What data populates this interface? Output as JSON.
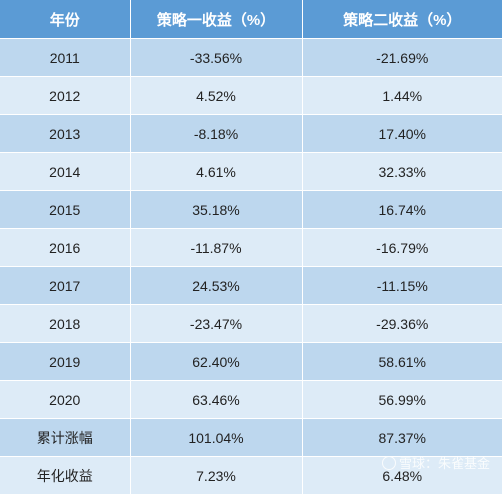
{
  "table": {
    "headers": [
      "年份",
      "策略一收益（%）",
      "策略二收益（%）"
    ],
    "rows": [
      [
        "2011",
        "-33.56%",
        "-21.69%"
      ],
      [
        "2012",
        "4.52%",
        "1.44%"
      ],
      [
        "2013",
        "-8.18%",
        "17.40%"
      ],
      [
        "2014",
        "4.61%",
        "32.33%"
      ],
      [
        "2015",
        "35.18%",
        "16.74%"
      ],
      [
        "2016",
        "-11.87%",
        "-16.79%"
      ],
      [
        "2017",
        "24.53%",
        "-11.15%"
      ],
      [
        "2018",
        "-23.47%",
        "-29.36%"
      ],
      [
        "2019",
        "62.40%",
        "58.61%"
      ],
      [
        "2020",
        "63.46%",
        "56.99%"
      ],
      [
        "累计涨幅",
        "101.04%",
        "87.37%"
      ],
      [
        "年化收益",
        "7.23%",
        "6.48%"
      ]
    ]
  },
  "watermark": {
    "text": "雪球：朱雀基金",
    "icon": "snowball-logo-icon"
  },
  "colors": {
    "header_bg": "#5b9bd5",
    "row_dark": "#bdd7ee",
    "row_light": "#ddebf7"
  }
}
